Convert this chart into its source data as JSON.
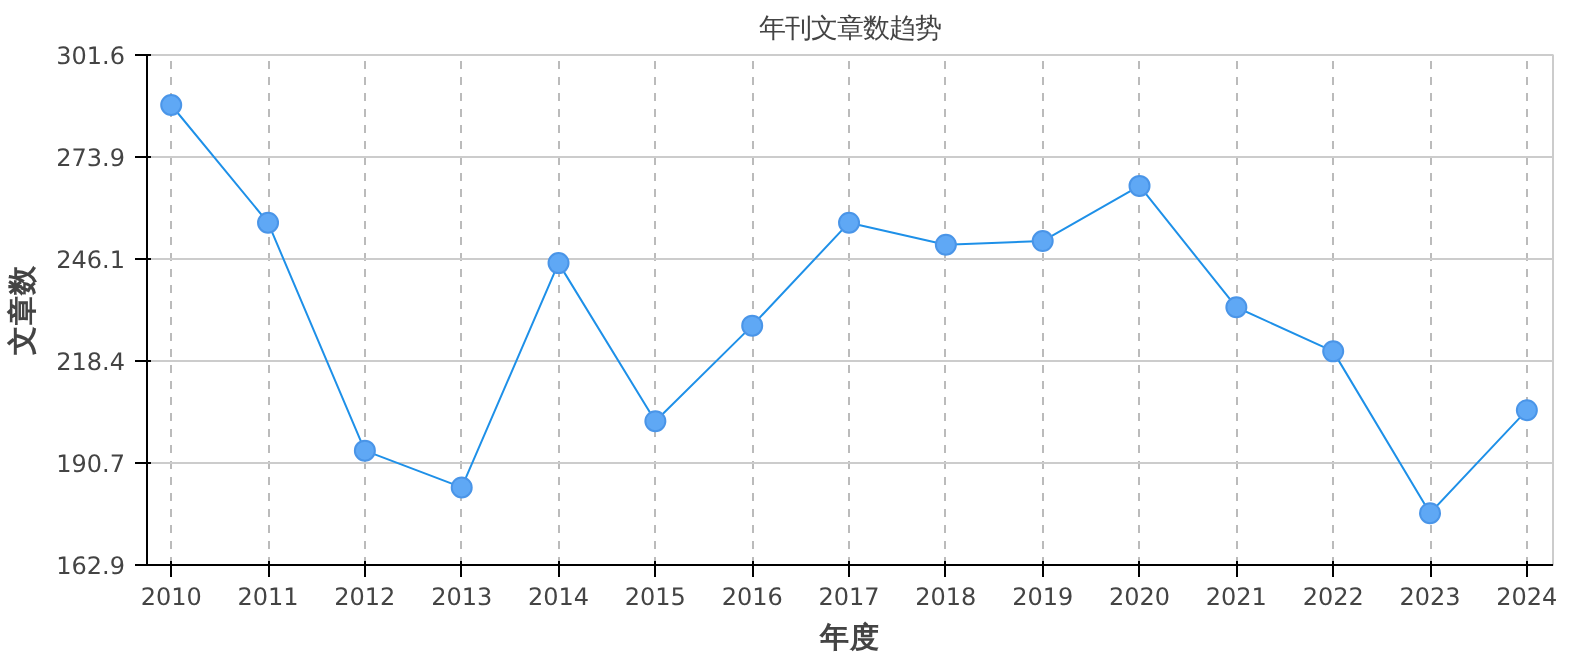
{
  "chart_data": {
    "type": "line",
    "title": "年刊文章数趋势",
    "xlabel": "年度",
    "ylabel": "文章数",
    "x": [
      2010,
      2011,
      2012,
      2013,
      2014,
      2015,
      2016,
      2017,
      2018,
      2019,
      2020,
      2021,
      2022,
      2023,
      2024
    ],
    "series": [
      {
        "color": "#1e90e8",
        "values": [
          288,
          256,
          194,
          184,
          245,
          202,
          228,
          256,
          250,
          251,
          266,
          233,
          221,
          177,
          205
        ]
      }
    ],
    "xlim": [
      2009.75,
      2024.27
    ],
    "xticks": [
      2010,
      2011,
      2012,
      2013,
      2014,
      2015,
      2016,
      2017,
      2018,
      2019,
      2020,
      2021,
      2022,
      2023,
      2024
    ],
    "ylim": [
      162.9,
      301.6
    ],
    "yticks": [
      162.9,
      190.7,
      218.4,
      246.1,
      273.9,
      301.6
    ],
    "grid": true,
    "marker": "circle",
    "line_style": "solid"
  }
}
